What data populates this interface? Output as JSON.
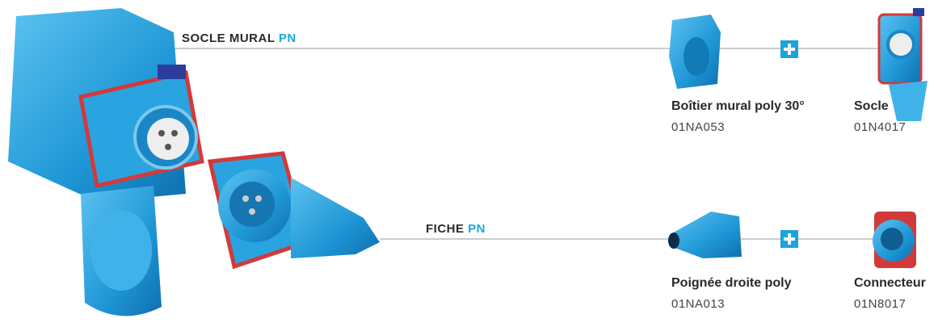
{
  "sections": [
    {
      "title": "SOCLE MURAL",
      "title_accent": "PN",
      "items": [
        {
          "name": "Boîtier mural poly 30°",
          "code": "01NA053"
        },
        {
          "name": "Socle",
          "code": "01N4017"
        }
      ]
    },
    {
      "title": "FICHE",
      "title_accent": "PN",
      "items": [
        {
          "name": "Poignée droite poly",
          "code": "01NA013"
        },
        {
          "name": "Connecteur",
          "code": "01N8017"
        }
      ]
    }
  ]
}
